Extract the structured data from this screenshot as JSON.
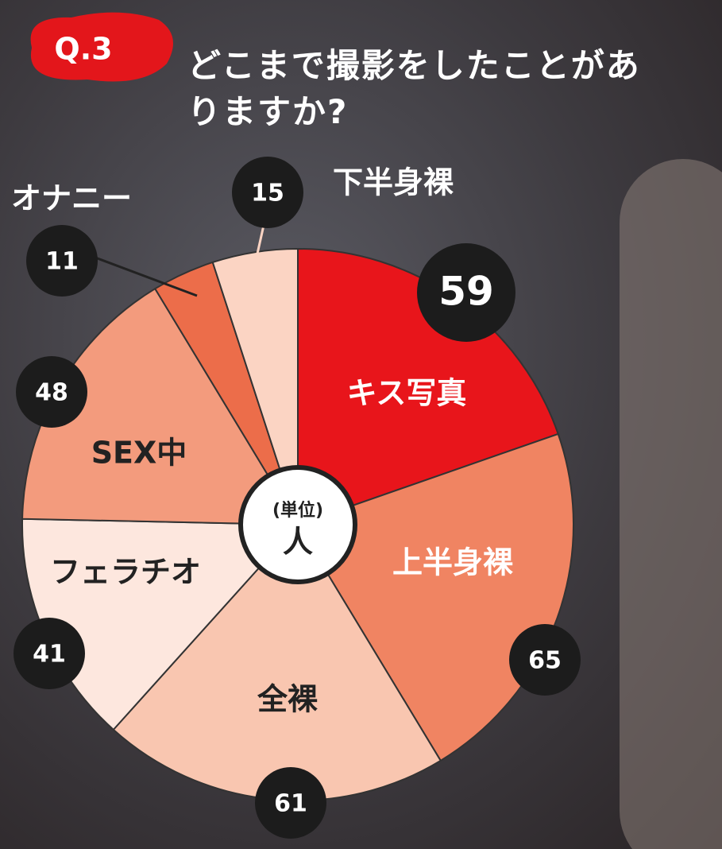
{
  "chart_data": {
    "type": "pie",
    "badge": "Q.3",
    "title": "どこまで撮影をしたことがありますか?",
    "unit_label": "(単位)",
    "unit": "人",
    "categories": [
      "キス写真",
      "上半身裸",
      "全裸",
      "フェラチオ",
      "SEX中",
      "オナニー",
      "下半身裸"
    ],
    "values": [
      59,
      65,
      61,
      41,
      48,
      11,
      15
    ],
    "colors": [
      "#e8151b",
      "#f08462",
      "#f9c6b0",
      "#fde7de",
      "#f39b7d",
      "#ec6d4a",
      "#fbd4c3"
    ]
  }
}
